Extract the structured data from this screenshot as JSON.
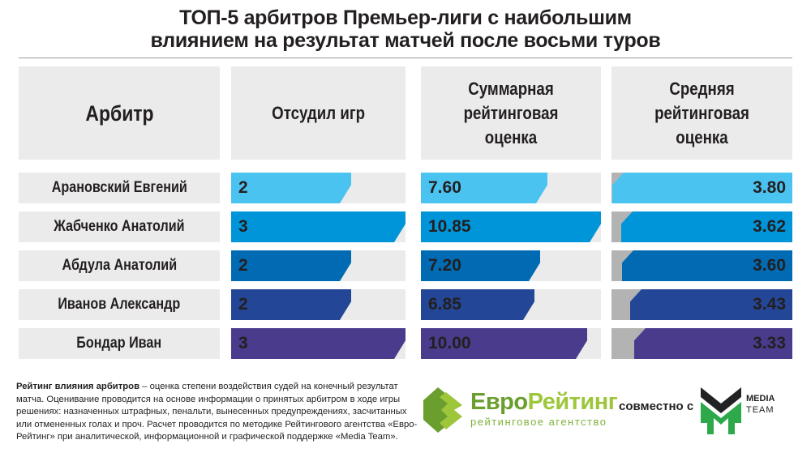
{
  "title": [
    "ТОП-5 арбитров Премьер-лиги с наибольшим",
    "влиянием на результат матчей после восьми туров"
  ],
  "headers": [
    "Арбитр",
    "Отсудил игр",
    "Суммарная рейтинговая оценка",
    "Средняя рейтинговая оценка"
  ],
  "rows": [
    {
      "name": "Арановский Евгений",
      "games": "2",
      "sum": "7.60",
      "avg": "3.80",
      "color": "#4bc3f0"
    },
    {
      "name": "Жабченко Анатолий",
      "games": "3",
      "sum": "10.85",
      "avg": "3.62",
      "color": "#0095d9"
    },
    {
      "name": "Абдула Анатолий",
      "games": "2",
      "sum": "7.20",
      "avg": "3.60",
      "color": "#006bb3"
    },
    {
      "name": "Иванов Александр",
      "games": "2",
      "sum": "6.85",
      "avg": "3.43",
      "color": "#244697"
    },
    {
      "name": "Бондар Иван",
      "games": "3",
      "sum": "10.00",
      "avg": "3.33",
      "color": "#4a3b8c"
    }
  ],
  "chart_data": {
    "type": "table",
    "title": "ТОП-5 арбитров Премьер-лиги с наибольшим влиянием на результат матчей после восьми туров",
    "categories": [
      "Арановский Евгений",
      "Жабченко Анатолий",
      "Абдула Анатолий",
      "Иванов Александр",
      "Бондар Иван"
    ],
    "series": [
      {
        "name": "Отсудил игр",
        "values": [
          2,
          3,
          2,
          2,
          3
        ]
      },
      {
        "name": "Суммарная рейтинговая оценка",
        "values": [
          7.6,
          10.85,
          7.2,
          6.85,
          10.0
        ]
      },
      {
        "name": "Средняя рейтинговая оценка",
        "values": [
          3.8,
          3.62,
          3.6,
          3.43,
          3.33
        ]
      }
    ]
  },
  "note": {
    "bold": "Рейтинг влияния арбитров",
    "text": " – оценка степени воздействия судей на конечный результат матча. Оценивание проводится на основе информации о принятых арбитром в ходе игры решениях: назначенных штрафных, пенальти, вынесенных предупреждениях, засчитанных или отмененных голах и проч. Расчет проводится по методике Рейтингового агентства «Евро-Рейтинг» при аналитической, информационной и графической поддержке «Media Team»."
  },
  "logo": {
    "part1": "Евро",
    "part2": "Рейтинг",
    "sub": "рейтинговое агентство",
    "together": "совместно с",
    "mt1": "MEDIA",
    "mt2": "TEAM"
  }
}
